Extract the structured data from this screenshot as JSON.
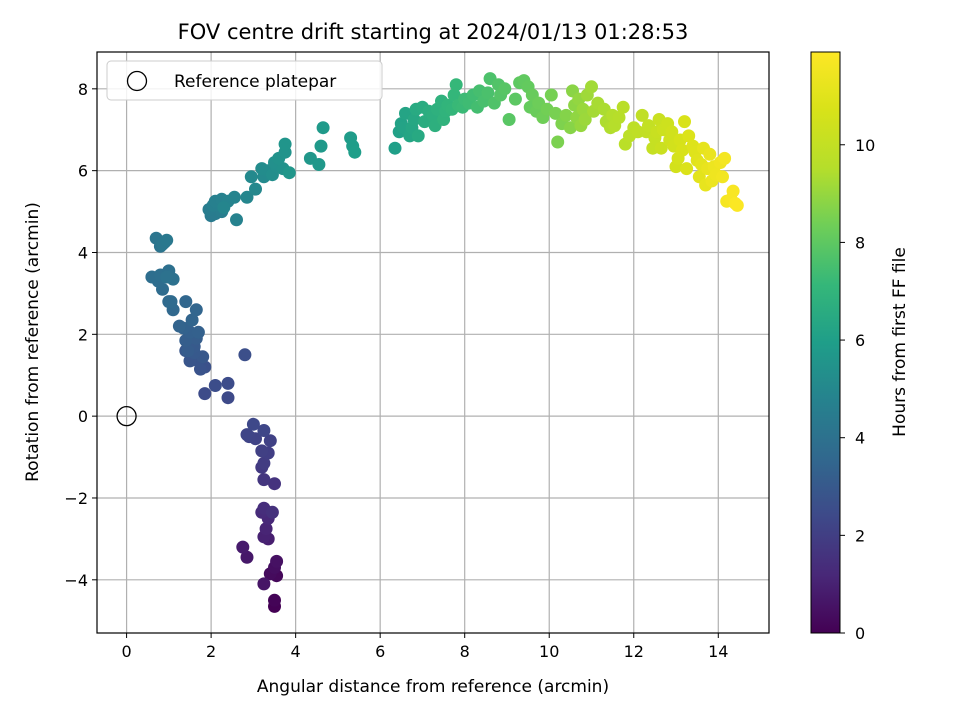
{
  "chart_data": {
    "type": "scatter",
    "title": "FOV centre drift starting at 2024/01/13 01:28:53",
    "xlabel": "Angular distance from reference (arcmin)",
    "ylabel": "Rotation from reference (arcmin)",
    "xlim": [
      -0.7,
      15.2
    ],
    "ylim": [
      -5.3,
      8.9
    ],
    "x_ticks": [
      0,
      2,
      4,
      6,
      8,
      10,
      12,
      14
    ],
    "y_ticks": [
      -4,
      -2,
      0,
      2,
      4,
      6,
      8
    ],
    "grid": true,
    "legend": {
      "placement": "top-left",
      "entries": [
        "Reference platepar"
      ]
    },
    "reference_point": {
      "name": "Reference platepar",
      "x": 0,
      "y": 0
    },
    "colorbar": {
      "label": "Hours from first FF file",
      "colormap": "viridis",
      "range": [
        0,
        11.9
      ],
      "ticks": [
        0,
        2,
        4,
        6,
        8,
        10
      ]
    },
    "series": [
      {
        "points": [
          [
            3.5,
            -4.65,
            0.0
          ],
          [
            3.5,
            -4.5,
            0.1
          ],
          [
            3.55,
            -3.9,
            0.2
          ],
          [
            3.4,
            -3.85,
            0.3
          ],
          [
            3.5,
            -3.7,
            0.4
          ],
          [
            3.55,
            -3.55,
            0.5
          ],
          [
            3.25,
            -4.1,
            0.6
          ],
          [
            2.85,
            -3.45,
            0.7
          ],
          [
            2.75,
            -3.2,
            0.8
          ],
          [
            3.35,
            -3.0,
            0.9
          ],
          [
            3.25,
            -2.95,
            1.0
          ],
          [
            3.3,
            -2.75,
            1.1
          ],
          [
            3.35,
            -2.5,
            1.2
          ],
          [
            3.2,
            -2.35,
            1.3
          ],
          [
            3.25,
            -2.25,
            1.4
          ],
          [
            3.45,
            -2.35,
            1.5
          ],
          [
            3.5,
            -1.65,
            1.6
          ],
          [
            3.25,
            -1.55,
            1.7
          ],
          [
            3.2,
            -1.25,
            1.8
          ],
          [
            3.25,
            -1.15,
            1.9
          ],
          [
            3.35,
            -0.9,
            2.0
          ],
          [
            3.2,
            -0.85,
            2.05
          ],
          [
            3.4,
            -0.6,
            2.1
          ],
          [
            3.05,
            -0.55,
            2.15
          ],
          [
            2.9,
            -0.5,
            2.2
          ],
          [
            2.85,
            -0.45,
            2.25
          ],
          [
            3.25,
            -0.35,
            2.3
          ],
          [
            3.0,
            -0.2,
            2.35
          ],
          [
            2.4,
            0.45,
            2.4
          ],
          [
            1.85,
            0.55,
            2.45
          ],
          [
            2.4,
            0.8,
            2.5
          ],
          [
            2.1,
            0.75,
            2.55
          ],
          [
            2.8,
            1.5,
            2.6
          ],
          [
            1.85,
            1.2,
            2.7
          ],
          [
            1.75,
            1.15,
            2.75
          ],
          [
            1.7,
            1.35,
            2.8
          ],
          [
            1.5,
            1.35,
            2.85
          ],
          [
            1.4,
            1.6,
            2.9
          ],
          [
            1.8,
            1.45,
            2.95
          ],
          [
            1.6,
            1.55,
            3.0
          ],
          [
            1.6,
            1.7,
            3.05
          ],
          [
            1.45,
            1.6,
            3.1
          ],
          [
            1.65,
            1.9,
            3.15
          ],
          [
            1.4,
            1.85,
            3.2
          ],
          [
            1.5,
            2.05,
            3.25
          ],
          [
            1.7,
            2.05,
            3.3
          ],
          [
            1.35,
            2.15,
            3.35
          ],
          [
            1.25,
            2.2,
            3.4
          ],
          [
            1.55,
            2.35,
            3.45
          ],
          [
            1.65,
            2.6,
            3.5
          ],
          [
            1.4,
            2.8,
            3.55
          ],
          [
            1.1,
            2.6,
            3.6
          ],
          [
            1.0,
            2.8,
            3.65
          ],
          [
            1.05,
            2.8,
            3.7
          ],
          [
            0.85,
            3.1,
            3.75
          ],
          [
            0.75,
            3.3,
            3.8
          ],
          [
            0.6,
            3.4,
            3.85
          ],
          [
            0.8,
            3.45,
            3.9
          ],
          [
            1.0,
            3.55,
            3.95
          ],
          [
            1.1,
            3.35,
            4.0
          ],
          [
            0.95,
            3.4,
            4.05
          ],
          [
            0.8,
            4.15,
            4.1
          ],
          [
            0.7,
            4.35,
            4.15
          ],
          [
            0.9,
            4.25,
            4.2
          ],
          [
            0.85,
            4.2,
            4.25
          ],
          [
            0.95,
            4.3,
            4.3
          ],
          [
            2.0,
            4.9,
            4.4
          ],
          [
            2.1,
            4.95,
            4.45
          ],
          [
            1.95,
            5.05,
            4.5
          ],
          [
            2.25,
            5.0,
            4.55
          ],
          [
            2.05,
            5.15,
            4.6
          ],
          [
            2.1,
            5.25,
            4.65
          ],
          [
            2.25,
            5.3,
            4.7
          ],
          [
            2.6,
            4.8,
            4.75
          ],
          [
            2.4,
            5.25,
            4.8
          ],
          [
            2.55,
            5.35,
            4.85
          ],
          [
            2.3,
            5.1,
            4.9
          ],
          [
            2.85,
            5.35,
            4.95
          ],
          [
            3.05,
            5.55,
            5.0
          ],
          [
            2.95,
            5.85,
            5.05
          ],
          [
            3.25,
            5.85,
            5.1
          ],
          [
            3.35,
            6.0,
            5.15
          ],
          [
            3.2,
            6.05,
            5.2
          ],
          [
            3.45,
            5.9,
            5.25
          ],
          [
            3.55,
            6.1,
            5.3
          ],
          [
            3.5,
            6.2,
            5.35
          ],
          [
            3.7,
            6.05,
            5.4
          ],
          [
            3.6,
            6.3,
            5.45
          ],
          [
            3.75,
            6.45,
            5.5
          ],
          [
            3.75,
            6.65,
            5.55
          ],
          [
            3.85,
            5.95,
            5.6
          ],
          [
            4.35,
            6.3,
            5.65
          ],
          [
            4.55,
            6.15,
            5.7
          ],
          [
            4.6,
            6.6,
            5.75
          ],
          [
            4.65,
            7.05,
            5.8
          ],
          [
            5.3,
            6.8,
            5.85
          ],
          [
            5.35,
            6.6,
            5.9
          ],
          [
            5.4,
            6.45,
            5.95
          ],
          [
            6.35,
            6.55,
            6.0
          ],
          [
            6.45,
            6.95,
            6.1
          ],
          [
            6.5,
            7.15,
            6.15
          ],
          [
            6.55,
            7.05,
            6.2
          ],
          [
            6.6,
            7.4,
            6.25
          ],
          [
            6.7,
            6.85,
            6.3
          ],
          [
            6.75,
            7.05,
            6.35
          ],
          [
            6.8,
            7.25,
            6.4
          ],
          [
            6.9,
            6.85,
            6.45
          ],
          [
            6.85,
            7.5,
            6.5
          ],
          [
            7.0,
            7.55,
            6.55
          ],
          [
            7.05,
            7.2,
            6.6
          ],
          [
            7.15,
            7.45,
            6.65
          ],
          [
            7.25,
            7.35,
            6.7
          ],
          [
            7.3,
            7.1,
            6.75
          ],
          [
            7.35,
            7.5,
            6.8
          ],
          [
            7.45,
            7.7,
            6.85
          ],
          [
            7.5,
            7.25,
            6.9
          ],
          [
            7.55,
            7.45,
            6.95
          ],
          [
            7.6,
            7.6,
            7.0
          ],
          [
            7.7,
            7.5,
            7.05
          ],
          [
            7.75,
            7.85,
            7.1
          ],
          [
            7.8,
            8.1,
            7.15
          ],
          [
            7.85,
            7.6,
            7.2
          ],
          [
            7.95,
            7.55,
            7.25
          ],
          [
            8.0,
            7.75,
            7.3
          ],
          [
            8.1,
            7.65,
            7.35
          ],
          [
            8.2,
            7.85,
            7.4
          ],
          [
            8.3,
            7.55,
            7.45
          ],
          [
            8.35,
            7.95,
            7.5
          ],
          [
            8.45,
            7.7,
            7.55
          ],
          [
            8.55,
            7.9,
            7.6
          ],
          [
            8.6,
            8.25,
            7.65
          ],
          [
            8.7,
            7.65,
            7.7
          ],
          [
            8.8,
            8.1,
            7.75
          ],
          [
            8.85,
            7.85,
            7.8
          ],
          [
            8.95,
            8.0,
            7.85
          ],
          [
            9.05,
            7.25,
            7.9
          ],
          [
            9.2,
            7.75,
            7.95
          ],
          [
            9.3,
            8.15,
            8.0
          ],
          [
            9.4,
            8.2,
            8.05
          ],
          [
            9.5,
            8.05,
            8.1
          ],
          [
            9.55,
            7.55,
            8.15
          ],
          [
            9.6,
            7.85,
            8.2
          ],
          [
            9.7,
            7.45,
            8.25
          ],
          [
            9.75,
            7.65,
            8.3
          ],
          [
            9.85,
            7.3,
            8.35
          ],
          [
            9.95,
            7.5,
            8.4
          ],
          [
            10.05,
            7.85,
            8.45
          ],
          [
            10.15,
            7.4,
            8.5
          ],
          [
            10.2,
            6.7,
            8.55
          ],
          [
            10.3,
            7.15,
            8.6
          ],
          [
            10.4,
            7.35,
            8.7
          ],
          [
            10.5,
            7.05,
            8.75
          ],
          [
            10.55,
            7.95,
            8.8
          ],
          [
            10.6,
            7.6,
            8.85
          ],
          [
            10.65,
            7.3,
            8.9
          ],
          [
            10.7,
            7.75,
            8.95
          ],
          [
            10.75,
            7.1,
            9.0
          ],
          [
            10.8,
            7.5,
            9.05
          ],
          [
            10.85,
            7.25,
            9.1
          ],
          [
            10.9,
            7.85,
            9.15
          ],
          [
            11.0,
            8.05,
            9.2
          ],
          [
            11.05,
            7.45,
            9.25
          ],
          [
            11.15,
            7.65,
            9.3
          ],
          [
            11.3,
            7.5,
            9.35
          ],
          [
            11.35,
            7.2,
            9.4
          ],
          [
            11.45,
            7.05,
            9.45
          ],
          [
            11.5,
            7.35,
            9.5
          ],
          [
            11.55,
            7.1,
            9.55
          ],
          [
            11.65,
            7.3,
            9.6
          ],
          [
            11.75,
            7.55,
            9.65
          ],
          [
            11.8,
            6.65,
            9.7
          ],
          [
            11.9,
            6.85,
            9.75
          ],
          [
            12.0,
            7.05,
            9.8
          ],
          [
            12.1,
            6.95,
            9.85
          ],
          [
            12.2,
            7.35,
            9.9
          ],
          [
            12.3,
            6.95,
            9.95
          ],
          [
            12.35,
            7.1,
            10.0
          ],
          [
            12.45,
            6.55,
            10.05
          ],
          [
            12.5,
            6.8,
            10.1
          ],
          [
            12.55,
            6.95,
            10.15
          ],
          [
            12.6,
            7.25,
            10.2
          ],
          [
            12.65,
            6.55,
            10.25
          ],
          [
            12.7,
            7.0,
            10.3
          ],
          [
            12.8,
            7.15,
            10.35
          ],
          [
            12.85,
            6.75,
            10.4
          ],
          [
            12.9,
            6.95,
            10.45
          ],
          [
            12.95,
            6.6,
            10.5
          ],
          [
            13.0,
            6.1,
            10.55
          ],
          [
            13.05,
            6.3,
            10.6
          ],
          [
            13.1,
            6.75,
            10.65
          ],
          [
            13.15,
            6.5,
            10.7
          ],
          [
            13.2,
            7.2,
            10.75
          ],
          [
            13.25,
            6.05,
            10.8
          ],
          [
            13.3,
            6.85,
            10.85
          ],
          [
            13.4,
            6.6,
            10.9
          ],
          [
            13.45,
            6.45,
            10.95
          ],
          [
            13.5,
            6.25,
            11.0
          ],
          [
            13.55,
            5.85,
            11.05
          ],
          [
            13.6,
            6.15,
            11.1
          ],
          [
            13.65,
            6.55,
            11.15
          ],
          [
            13.7,
            5.65,
            11.2
          ],
          [
            13.75,
            6.05,
            11.25
          ],
          [
            13.8,
            6.4,
            11.3
          ],
          [
            13.85,
            5.75,
            11.35
          ],
          [
            13.9,
            6.1,
            11.4
          ],
          [
            13.95,
            5.9,
            11.45
          ],
          [
            14.05,
            6.2,
            11.5
          ],
          [
            14.1,
            5.85,
            11.55
          ],
          [
            14.15,
            6.3,
            11.6
          ],
          [
            14.2,
            5.25,
            11.65
          ],
          [
            14.3,
            5.3,
            11.7
          ],
          [
            14.35,
            5.5,
            11.75
          ],
          [
            14.4,
            5.2,
            11.8
          ],
          [
            14.45,
            5.15,
            11.85
          ]
        ]
      }
    ]
  }
}
